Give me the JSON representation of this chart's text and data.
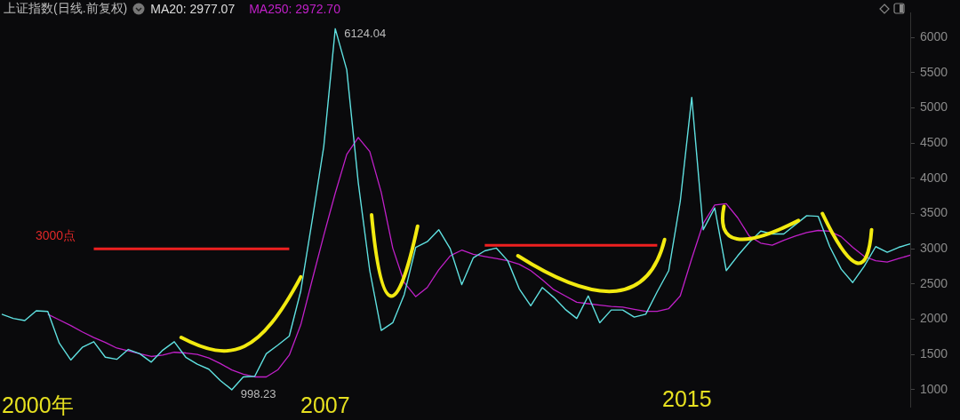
{
  "chart_data": {
    "type": "line",
    "title": "上证指数(日线.前复权)",
    "marker": "none",
    "grid": false,
    "tick_labels": "y",
    "categories": [
      null,
      null,
      null,
      null,
      null,
      null,
      null,
      null,
      null,
      null,
      null,
      null,
      null,
      null,
      null,
      null,
      null,
      null,
      null,
      null,
      null,
      null,
      null,
      null,
      null,
      null,
      null,
      null,
      null,
      null,
      null,
      null,
      null,
      null,
      null,
      null,
      null,
      null,
      null,
      null,
      null,
      null,
      null,
      null,
      null,
      null,
      null,
      null,
      null,
      null,
      null,
      null,
      null,
      null,
      null,
      null,
      null,
      null,
      null,
      null,
      null,
      null,
      null,
      null,
      null,
      null,
      null,
      null,
      null,
      null,
      null,
      null,
      null,
      null,
      null,
      null,
      null,
      null,
      null,
      null
    ],
    "ylim": [
      750,
      6350
    ],
    "yticks": [
      1000,
      1500,
      2000,
      2500,
      3000,
      3500,
      4000,
      4500,
      5000,
      5500,
      6000
    ],
    "series": [
      {
        "name": null,
        "color": "#5fe0e0",
        "values": [
          2070,
          2010,
          1980,
          2120,
          2110,
          1660,
          1420,
          1600,
          1680,
          1460,
          1430,
          1570,
          1510,
          1390,
          1560,
          1680,
          1460,
          1360,
          1290,
          1130,
          998.23,
          1180,
          1190,
          1510,
          1630,
          1760,
          2400,
          3410,
          4450,
          6124.04,
          5540,
          3940,
          2690,
          1840,
          1950,
          2350,
          3020,
          3100,
          3270,
          3000,
          2490,
          2870,
          2970,
          3010,
          2830,
          2430,
          2190,
          2450,
          2310,
          2140,
          2010,
          2330,
          1950,
          2130,
          2130,
          2030,
          2070,
          2390,
          2690,
          3670,
          5150,
          3270,
          3580,
          2690,
          2900,
          3090,
          3250,
          3210,
          3210,
          3340,
          3470,
          3460,
          3030,
          2710,
          2520,
          2750,
          3030,
          2950,
          3020,
          3070
        ],
        "value_labels": [
          null,
          null,
          null,
          null,
          null,
          null,
          null,
          null,
          null,
          null,
          null,
          null,
          null,
          null,
          null,
          null,
          null,
          null,
          null,
          null,
          "998.23",
          null,
          null,
          null,
          null,
          null,
          null,
          null,
          null,
          "6124.04",
          null,
          null,
          null,
          null,
          null,
          null,
          null,
          null,
          null,
          null,
          null,
          null,
          null,
          null,
          null,
          null,
          null,
          null,
          null,
          null,
          null,
          null,
          null,
          null,
          null,
          null,
          null,
          null,
          null,
          null,
          null,
          null,
          null,
          null,
          null,
          null,
          null,
          null,
          null,
          null,
          null,
          null,
          null,
          null,
          null,
          null,
          null,
          null,
          null,
          null
        ]
      },
      {
        "name": "MA250: 2972.70",
        "color": "#c020c8",
        "values": [
          null,
          null,
          null,
          null,
          2070,
          1990,
          1910,
          1820,
          1740,
          1670,
          1590,
          1550,
          1510,
          1470,
          1490,
          1530,
          1520,
          1500,
          1450,
          1370,
          1280,
          1220,
          1180,
          1180,
          1280,
          1490,
          1920,
          2560,
          3190,
          3790,
          4340,
          4580,
          4380,
          3800,
          3010,
          2520,
          2320,
          2450,
          2700,
          2900,
          2980,
          2920,
          2890,
          2860,
          2830,
          2780,
          2690,
          2560,
          2420,
          2330,
          2240,
          2220,
          2200,
          2180,
          2170,
          2140,
          2110,
          2110,
          2150,
          2330,
          2860,
          3360,
          3620,
          3640,
          3440,
          3180,
          3080,
          3050,
          3120,
          3180,
          3230,
          3260,
          3250,
          3170,
          3020,
          2890,
          2830,
          2810,
          2860,
          2910
        ]
      },
      {
        "name": null,
        "color": "#ee2020",
        "values": [
          null,
          null,
          null,
          null,
          null,
          null,
          null,
          null,
          3000,
          3000,
          3000,
          3000,
          3000,
          3000,
          3000,
          3000,
          3000,
          3000,
          3000,
          3000,
          3000,
          3000,
          3000,
          3000,
          3000,
          3000,
          null,
          null,
          null,
          null,
          null,
          null,
          null,
          null,
          null,
          null,
          null,
          null,
          null,
          null,
          null,
          null,
          null,
          null,
          null,
          null,
          null,
          null,
          null,
          null,
          null,
          null,
          null,
          null,
          null,
          null,
          null,
          null,
          null,
          null,
          null,
          null,
          null,
          null,
          null,
          null,
          null,
          null,
          null,
          null,
          null,
          null,
          null,
          null,
          null,
          null,
          null,
          null,
          null,
          null
        ]
      },
      {
        "name": null,
        "color": "#ee2020",
        "values": [
          null,
          null,
          null,
          null,
          null,
          null,
          null,
          null,
          null,
          null,
          null,
          null,
          null,
          null,
          null,
          null,
          null,
          null,
          null,
          null,
          null,
          null,
          null,
          null,
          null,
          null,
          null,
          null,
          null,
          null,
          null,
          null,
          null,
          null,
          null,
          null,
          null,
          null,
          null,
          null,
          null,
          null,
          3050,
          3050,
          3050,
          3050,
          3050,
          3050,
          3050,
          3050,
          3050,
          3050,
          3050,
          3050,
          3050,
          3050,
          3050,
          3050,
          null,
          null,
          null,
          null,
          null,
          null,
          null,
          null,
          null,
          null,
          null,
          null,
          null,
          null,
          null,
          null,
          null,
          null,
          null,
          null,
          null,
          null
        ]
      }
    ],
    "annotations": [
      "MA20: 2977.07",
      "3000点",
      "2000年",
      "2007",
      "2015"
    ]
  }
}
